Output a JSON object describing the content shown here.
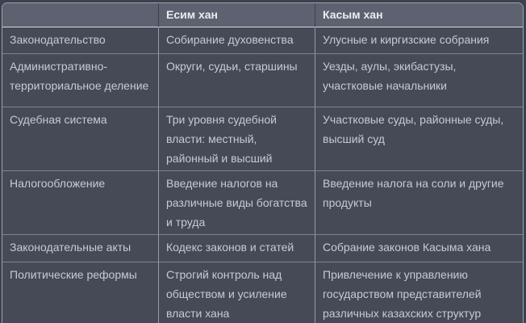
{
  "colors": {
    "page_background": "#3d414b",
    "header_background": "#5d6270",
    "body_background": "#464a56",
    "header_text": "#ebedf0",
    "body_text": "#c6cad3",
    "outer_border": "#9ba0aa",
    "header_bottom_border": "#d5d7dc",
    "row_separator": "#7f8390",
    "column_separator": "#979ba5"
  },
  "table": {
    "header": {
      "category_label": "",
      "esim_khan": "Есим хан",
      "kasym_khan": "Касым хан"
    },
    "rows": [
      {
        "category": "Законодательство",
        "esim_khan": "Собирание духовенства",
        "kasym_khan": "Улусные и киргизские собрания"
      },
      {
        "category": "Административно-территориальное деление",
        "esim_khan": "Округи, судьи, старшины",
        "kasym_khan": "Уезды, аулы, экибастузы, участковые начальники"
      },
      {
        "category": "Судебная система",
        "esim_khan": "Три уровня судебной власти: местный, районный и высший",
        "kasym_khan": "Участковые суды, районные суды, высший суд"
      },
      {
        "category": "Налогообложение",
        "esim_khan": "Введение налогов на различные виды богатства и труда",
        "kasym_khan": "Введение налога на соли и другие продукты"
      },
      {
        "category": "Законодательные акты",
        "esim_khan": "Кодекс законов и статей",
        "kasym_khan": "Собрание законов Касыма хана"
      },
      {
        "category": "Политические реформы",
        "esim_khan": "Строгий контроль над обществом и усиление власти хана",
        "kasym_khan": "Привлечение к управлению государством представителей различных казахских структур"
      }
    ]
  }
}
